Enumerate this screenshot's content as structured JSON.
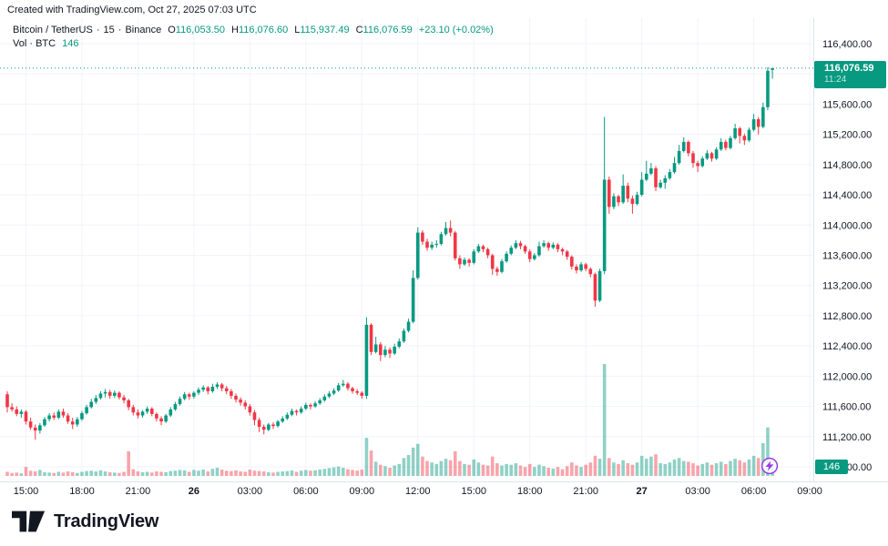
{
  "header": {
    "credit": "Created with TradingView.com, Oct 27, 2025 07:03 UTC"
  },
  "legend": {
    "title": "Bitcoin / TetherUS",
    "sep": "·",
    "interval": "15",
    "exchange": "Binance",
    "o_label": "O",
    "o": "116,053.50",
    "h_label": "H",
    "h": "116,076.60",
    "l_label": "L",
    "l": "115,937.49",
    "c_label": "C",
    "c": "116,076.59",
    "change": "+23.10 (+0.02%)",
    "vol_label": "Vol · BTC",
    "vol": "146"
  },
  "price_label": {
    "price": "116,076.59",
    "countdown": "11:24"
  },
  "volume_badge": {
    "value": "146"
  },
  "footer": {
    "brand": "TradingView"
  },
  "icons": {
    "lightning": "bolt-in-purple-circle",
    "logo": "tradingview-mark"
  },
  "colors": {
    "up": "#089981",
    "down": "#F23645",
    "vol_up": "rgba(8,153,129,0.45)",
    "vol_down": "rgba(242,54,69,0.45)",
    "grid": "#F0F3FA",
    "axis_line": "#E0E3EB",
    "axis_text": "#131722",
    "accent": "#089981",
    "lightning": "#9C3BE8",
    "background": "#FFFFFF"
  },
  "chart_data": {
    "type": "candlestick",
    "title": "Bitcoin / TetherUS · 15 · Binance",
    "symbol": "Bitcoin / TetherUS",
    "interval_minutes": 15,
    "exchange": "Binance",
    "legend_position": "top-left",
    "grid": true,
    "current_price": 116076.59,
    "countdown": "11:24",
    "current_volume_btc": 146,
    "last_candle_ohlc": {
      "o": 116053.5,
      "h": 116076.6,
      "l": 115937.49,
      "c": 116076.59,
      "change": 23.1,
      "change_pct": 0.02
    },
    "price_axis": {
      "ylim": [
        110600,
        116600
      ],
      "tick_step": 400,
      "grid_values": [
        116400,
        116000,
        115600,
        115200,
        114800,
        114400,
        114000,
        113600,
        113200,
        112800,
        112400,
        112000,
        111600,
        111200,
        110800
      ],
      "labeled_ticks": [
        {
          "v": 116400,
          "label": "116,400.00"
        },
        {
          "v": 115600,
          "label": "115,600.00"
        },
        {
          "v": 115200,
          "label": "115,200.00"
        },
        {
          "v": 114800,
          "label": "114,800.00"
        },
        {
          "v": 114400,
          "label": "114,400.00"
        },
        {
          "v": 114000,
          "label": "114,000.00"
        },
        {
          "v": 113600,
          "label": "113,600.00"
        },
        {
          "v": 113200,
          "label": "113,200.00"
        },
        {
          "v": 112800,
          "label": "112,800.00"
        },
        {
          "v": 112400,
          "label": "112,400.00"
        },
        {
          "v": 112000,
          "label": "112,000.00"
        },
        {
          "v": 111600,
          "label": "111,600.00"
        },
        {
          "v": 111200,
          "label": "111,200.00"
        },
        {
          "v": 110800,
          "label": "110,800.00"
        }
      ]
    },
    "time_axis": {
      "start": "Oct 25 14:00 UTC",
      "labels": [
        {
          "i": 4,
          "label": "15:00"
        },
        {
          "i": 16,
          "label": "18:00"
        },
        {
          "i": 28,
          "label": "21:00"
        },
        {
          "i": 40,
          "label": "26",
          "bold": true
        },
        {
          "i": 52,
          "label": "03:00"
        },
        {
          "i": 64,
          "label": "06:00"
        },
        {
          "i": 76,
          "label": "09:00"
        },
        {
          "i": 88,
          "label": "12:00"
        },
        {
          "i": 100,
          "label": "15:00"
        },
        {
          "i": 112,
          "label": "18:00"
        },
        {
          "i": 124,
          "label": "21:00"
        },
        {
          "i": 136,
          "label": "27",
          "bold": true
        },
        {
          "i": 148,
          "label": "03:00"
        },
        {
          "i": 160,
          "label": "06:00"
        },
        {
          "i": 172,
          "label": "09:00"
        }
      ]
    },
    "candles": [
      [
        111760,
        111800,
        111520,
        111590
      ],
      [
        111590,
        111640,
        111530,
        111560
      ],
      [
        111560,
        111600,
        111470,
        111500
      ],
      [
        111500,
        111560,
        111450,
        111530
      ],
      [
        111530,
        111550,
        111360,
        111400
      ],
      [
        111400,
        111450,
        111290,
        111320
      ],
      [
        111320,
        111360,
        111160,
        111280
      ],
      [
        111280,
        111380,
        111240,
        111350
      ],
      [
        111350,
        111460,
        111330,
        111430
      ],
      [
        111430,
        111510,
        111400,
        111480
      ],
      [
        111480,
        111520,
        111420,
        111450
      ],
      [
        111450,
        111560,
        111430,
        111530
      ],
      [
        111530,
        111570,
        111450,
        111480
      ],
      [
        111480,
        111510,
        111370,
        111400
      ],
      [
        111400,
        111450,
        111300,
        111360
      ],
      [
        111360,
        111460,
        111330,
        111430
      ],
      [
        111430,
        111540,
        111410,
        111510
      ],
      [
        111510,
        111620,
        111490,
        111590
      ],
      [
        111590,
        111700,
        111570,
        111660
      ],
      [
        111660,
        111750,
        111630,
        111710
      ],
      [
        111710,
        111800,
        111690,
        111770
      ],
      [
        111770,
        111830,
        111720,
        111790
      ],
      [
        111790,
        111820,
        111700,
        111740
      ],
      [
        111740,
        111810,
        111710,
        111780
      ],
      [
        111780,
        111800,
        111690,
        111720
      ],
      [
        111720,
        111750,
        111640,
        111680
      ],
      [
        111680,
        111700,
        111550,
        111590
      ],
      [
        111590,
        111620,
        111480,
        111520
      ],
      [
        111520,
        111560,
        111440,
        111480
      ],
      [
        111480,
        111550,
        111450,
        111530
      ],
      [
        111530,
        111600,
        111500,
        111570
      ],
      [
        111570,
        111590,
        111470,
        111500
      ],
      [
        111500,
        111520,
        111400,
        111440
      ],
      [
        111440,
        111470,
        111350,
        111400
      ],
      [
        111400,
        111500,
        111380,
        111480
      ],
      [
        111480,
        111590,
        111460,
        111560
      ],
      [
        111560,
        111660,
        111540,
        111630
      ],
      [
        111630,
        111730,
        111610,
        111700
      ],
      [
        111700,
        111790,
        111680,
        111760
      ],
      [
        111760,
        111780,
        111690,
        111730
      ],
      [
        111730,
        111800,
        111700,
        111780
      ],
      [
        111780,
        111850,
        111750,
        111820
      ],
      [
        111820,
        111880,
        111790,
        111850
      ],
      [
        111850,
        111870,
        111760,
        111800
      ],
      [
        111800,
        111900,
        111780,
        111860
      ],
      [
        111860,
        111920,
        111830,
        111890
      ],
      [
        111890,
        111910,
        111800,
        111840
      ],
      [
        111840,
        111870,
        111760,
        111800
      ],
      [
        111800,
        111830,
        111700,
        111740
      ],
      [
        111740,
        111770,
        111650,
        111690
      ],
      [
        111690,
        111720,
        111610,
        111650
      ],
      [
        111650,
        111680,
        111560,
        111600
      ],
      [
        111600,
        111630,
        111480,
        111520
      ],
      [
        111520,
        111550,
        111350,
        111420
      ],
      [
        111420,
        111450,
        111260,
        111330
      ],
      [
        111330,
        111360,
        111230,
        111290
      ],
      [
        111290,
        111380,
        111270,
        111360
      ],
      [
        111360,
        111390,
        111300,
        111340
      ],
      [
        111340,
        111420,
        111320,
        111400
      ],
      [
        111400,
        111470,
        111380,
        111440
      ],
      [
        111440,
        111520,
        111420,
        111490
      ],
      [
        111490,
        111570,
        111470,
        111540
      ],
      [
        111540,
        111560,
        111480,
        111520
      ],
      [
        111520,
        111600,
        111500,
        111570
      ],
      [
        111570,
        111650,
        111550,
        111620
      ],
      [
        111620,
        111640,
        111560,
        111600
      ],
      [
        111600,
        111670,
        111580,
        111640
      ],
      [
        111640,
        111710,
        111620,
        111680
      ],
      [
        111680,
        111760,
        111660,
        111730
      ],
      [
        111730,
        111800,
        111710,
        111770
      ],
      [
        111770,
        111840,
        111750,
        111810
      ],
      [
        111810,
        111910,
        111790,
        111880
      ],
      [
        111880,
        111950,
        111860,
        111900
      ],
      [
        111900,
        111920,
        111810,
        111840
      ],
      [
        111840,
        111860,
        111770,
        111800
      ],
      [
        111800,
        111830,
        111750,
        111780
      ],
      [
        111780,
        111800,
        111700,
        111740
      ],
      [
        111740,
        112780,
        111700,
        112680
      ],
      [
        112680,
        112700,
        112280,
        112320
      ],
      [
        112320,
        112520,
        112300,
        112420
      ],
      [
        112420,
        112450,
        112200,
        112280
      ],
      [
        112280,
        112400,
        112250,
        112350
      ],
      [
        112350,
        112380,
        112240,
        112300
      ],
      [
        112300,
        112430,
        112280,
        112390
      ],
      [
        112390,
        112500,
        112370,
        112460
      ],
      [
        112460,
        112630,
        112440,
        112600
      ],
      [
        112600,
        112760,
        112580,
        112720
      ],
      [
        112720,
        113400,
        112700,
        113300
      ],
      [
        113300,
        113970,
        113280,
        113900
      ],
      [
        113900,
        113930,
        113740,
        113780
      ],
      [
        113780,
        113820,
        113660,
        113700
      ],
      [
        113700,
        113780,
        113670,
        113740
      ],
      [
        113740,
        113800,
        113700,
        113750
      ],
      [
        113750,
        113910,
        113730,
        113880
      ],
      [
        113880,
        114040,
        113860,
        113960
      ],
      [
        113960,
        114060,
        113850,
        113900
      ],
      [
        113900,
        113920,
        113530,
        113560
      ],
      [
        113560,
        113600,
        113420,
        113480
      ],
      [
        113480,
        113570,
        113460,
        113540
      ],
      [
        113540,
        113560,
        113450,
        113500
      ],
      [
        113500,
        113680,
        113480,
        113650
      ],
      [
        113650,
        113750,
        113630,
        113720
      ],
      [
        113720,
        113740,
        113640,
        113680
      ],
      [
        113680,
        113700,
        113560,
        113600
      ],
      [
        113600,
        113620,
        113340,
        113420
      ],
      [
        113420,
        113450,
        113330,
        113380
      ],
      [
        113380,
        113550,
        113360,
        113520
      ],
      [
        113520,
        113650,
        113500,
        113620
      ],
      [
        113620,
        113730,
        113600,
        113700
      ],
      [
        113700,
        113800,
        113680,
        113760
      ],
      [
        113760,
        113790,
        113680,
        113720
      ],
      [
        113720,
        113740,
        113620,
        113650
      ],
      [
        113650,
        113680,
        113510,
        113550
      ],
      [
        113550,
        113630,
        113530,
        113600
      ],
      [
        113600,
        113780,
        113580,
        113720
      ],
      [
        113720,
        113800,
        113700,
        113760
      ],
      [
        113760,
        113780,
        113660,
        113700
      ],
      [
        113700,
        113770,
        113680,
        113740
      ],
      [
        113740,
        113760,
        113640,
        113680
      ],
      [
        113680,
        113700,
        113600,
        113650
      ],
      [
        113650,
        113670,
        113540,
        113580
      ],
      [
        113580,
        113600,
        113410,
        113450
      ],
      [
        113450,
        113480,
        113360,
        113400
      ],
      [
        113400,
        113510,
        113380,
        113480
      ],
      [
        113480,
        113500,
        113390,
        113420
      ],
      [
        113420,
        113440,
        113310,
        113350
      ],
      [
        113350,
        113370,
        112920,
        113000
      ],
      [
        113000,
        113420,
        112980,
        113390
      ],
      [
        113390,
        115430,
        113350,
        114600
      ],
      [
        114600,
        114640,
        114150,
        114240
      ],
      [
        114240,
        114420,
        114210,
        114380
      ],
      [
        114380,
        114400,
        114250,
        114300
      ],
      [
        114300,
        114670,
        114280,
        114520
      ],
      [
        114520,
        114560,
        114300,
        114350
      ],
      [
        114350,
        114390,
        114150,
        114280
      ],
      [
        114280,
        114440,
        114260,
        114400
      ],
      [
        114400,
        114700,
        114380,
        114600
      ],
      [
        114600,
        114850,
        114580,
        114680
      ],
      [
        114680,
        114820,
        114660,
        114750
      ],
      [
        114750,
        114780,
        114450,
        114500
      ],
      [
        114500,
        114600,
        114480,
        114560
      ],
      [
        114560,
        114660,
        114480,
        114620
      ],
      [
        114620,
        114740,
        114600,
        114700
      ],
      [
        114700,
        114900,
        114680,
        114820
      ],
      [
        114820,
        115060,
        114800,
        114980
      ],
      [
        114980,
        115160,
        114960,
        115100
      ],
      [
        115100,
        115120,
        114910,
        114950
      ],
      [
        114950,
        114980,
        114760,
        114820
      ],
      [
        114820,
        114850,
        114700,
        114780
      ],
      [
        114780,
        114910,
        114760,
        114880
      ],
      [
        114880,
        114990,
        114860,
        114950
      ],
      [
        114950,
        114970,
        114840,
        114880
      ],
      [
        114880,
        115030,
        114860,
        115000
      ],
      [
        115000,
        115150,
        114980,
        115100
      ],
      [
        115100,
        115130,
        114990,
        115020
      ],
      [
        115020,
        115180,
        115000,
        115150
      ],
      [
        115150,
        115340,
        115130,
        115280
      ],
      [
        115280,
        115300,
        115080,
        115180
      ],
      [
        115180,
        115210,
        115060,
        115120
      ],
      [
        115120,
        115290,
        115100,
        115260
      ],
      [
        115260,
        115470,
        115240,
        115400
      ],
      [
        115400,
        115430,
        115200,
        115300
      ],
      [
        115300,
        115620,
        115280,
        115560
      ],
      [
        115560,
        116090,
        115520,
        116040
      ],
      [
        116053.5,
        116076.6,
        115937.49,
        116076.59
      ]
    ],
    "volumes": [
      55,
      40,
      45,
      35,
      120,
      70,
      60,
      80,
      50,
      45,
      40,
      55,
      45,
      60,
      50,
      40,
      55,
      65,
      70,
      60,
      75,
      60,
      50,
      45,
      40,
      55,
      330,
      90,
      60,
      50,
      55,
      45,
      60,
      55,
      50,
      65,
      70,
      80,
      75,
      55,
      80,
      70,
      85,
      60,
      95,
      110,
      85,
      70,
      65,
      75,
      60,
      55,
      85,
      70,
      65,
      60,
      50,
      45,
      55,
      60,
      65,
      75,
      55,
      70,
      80,
      70,
      75,
      85,
      95,
      105,
      115,
      125,
      110,
      90,
      80,
      70,
      85,
      510,
      340,
      190,
      150,
      130,
      110,
      140,
      160,
      240,
      280,
      380,
      430,
      260,
      200,
      180,
      160,
      200,
      230,
      210,
      330,
      200,
      160,
      150,
      220,
      180,
      150,
      140,
      260,
      170,
      140,
      160,
      150,
      170,
      140,
      120,
      160,
      120,
      150,
      130,
      110,
      100,
      120,
      90,
      130,
      180,
      140,
      120,
      150,
      180,
      270,
      230,
      1500,
      240,
      180,
      160,
      210,
      170,
      150,
      180,
      270,
      230,
      260,
      290,
      170,
      160,
      180,
      220,
      240,
      200,
      190,
      170,
      140,
      160,
      180,
      150,
      170,
      190,
      160,
      200,
      230,
      210,
      180,
      220,
      270,
      240,
      440,
      650,
      146
    ]
  }
}
